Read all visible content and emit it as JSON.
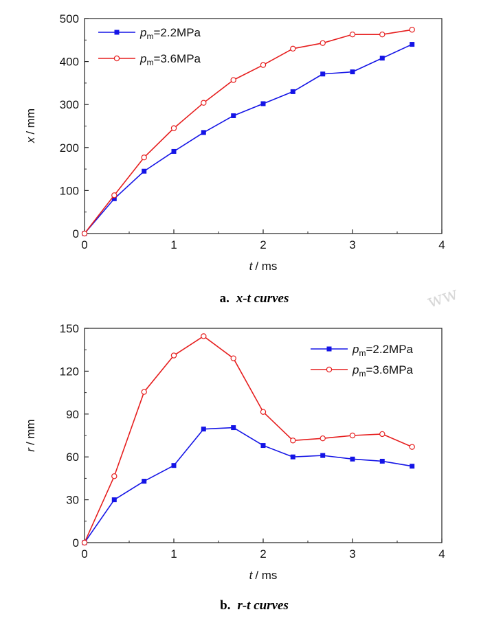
{
  "chart_data": [
    {
      "type": "line",
      "caption_letter": "a.",
      "caption_text": "x-t curves",
      "xlabel_var": "t",
      "xlabel_unit": "/ ms",
      "ylabel_var": "x",
      "ylabel_unit": "/ mm",
      "xlim": [
        0,
        4
      ],
      "ylim": [
        0,
        500
      ],
      "xticks": [
        0,
        1,
        2,
        3,
        4
      ],
      "yticks": [
        0,
        100,
        200,
        300,
        400,
        500
      ],
      "grid": false,
      "legend_position": "top-left",
      "series": [
        {
          "name_sym": "p",
          "name_sub": "m",
          "name_rest": "=2.2MPa",
          "color": "#1414e6",
          "marker": "filled-square",
          "x": [
            0,
            0.333,
            0.667,
            1.0,
            1.333,
            1.667,
            2.0,
            2.333,
            2.667,
            3.0,
            3.333,
            3.667
          ],
          "y": [
            0,
            81,
            145,
            191,
            235,
            274,
            302,
            330,
            371,
            376,
            408,
            440
          ]
        },
        {
          "name_sym": "p",
          "name_sub": "m",
          "name_rest": "=3.6MPa",
          "color": "#e61e1e",
          "marker": "open-circle",
          "x": [
            0,
            0.333,
            0.667,
            1.0,
            1.333,
            1.667,
            2.0,
            2.333,
            2.667,
            3.0,
            3.333,
            3.667
          ],
          "y": [
            0,
            89,
            177,
            245,
            304,
            357,
            392,
            430,
            443,
            463,
            463,
            474
          ]
        }
      ]
    },
    {
      "type": "line",
      "caption_letter": "b.",
      "caption_text": "r-t curves",
      "xlabel_var": "t",
      "xlabel_unit": "/ ms",
      "ylabel_var": "r",
      "ylabel_unit": "/ mm",
      "xlim": [
        0,
        4
      ],
      "ylim": [
        0,
        150
      ],
      "xticks": [
        0,
        1,
        2,
        3,
        4
      ],
      "yticks": [
        0,
        30,
        60,
        90,
        120,
        150
      ],
      "grid": false,
      "legend_position": "top-right",
      "series": [
        {
          "name_sym": "p",
          "name_sub": "m",
          "name_rest": "=2.2MPa",
          "color": "#1414e6",
          "marker": "filled-square",
          "x": [
            0,
            0.333,
            0.667,
            1.0,
            1.333,
            1.667,
            2.0,
            2.333,
            2.667,
            3.0,
            3.333,
            3.667
          ],
          "y": [
            0,
            30,
            43,
            54,
            79.5,
            80.5,
            68,
            60,
            61,
            58.5,
            57,
            53.5
          ]
        },
        {
          "name_sym": "p",
          "name_sub": "m",
          "name_rest": "=3.6MPa",
          "color": "#e61e1e",
          "marker": "open-circle",
          "x": [
            0,
            0.333,
            0.667,
            1.0,
            1.333,
            1.667,
            2.0,
            2.333,
            2.667,
            3.0,
            3.333,
            3.667
          ],
          "y": [
            0,
            46.5,
            105.5,
            131,
            144.5,
            129,
            91.5,
            71.5,
            73,
            75,
            76,
            67
          ]
        }
      ]
    }
  ],
  "watermark": "ww"
}
